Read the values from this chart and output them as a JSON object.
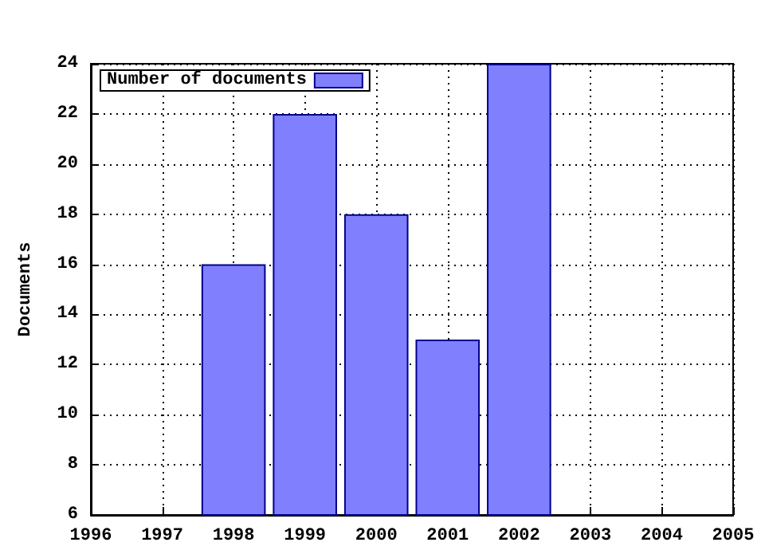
{
  "chart_data": {
    "type": "bar",
    "ylabel": "Documents",
    "x": [
      1998,
      1999,
      2000,
      2001,
      2002
    ],
    "series": [
      {
        "name": "Number of documents",
        "color": "#8080ff",
        "values": [
          16,
          22,
          18,
          13,
          24
        ]
      }
    ],
    "xlim": [
      1996,
      2005
    ],
    "xticks": [
      1996,
      1997,
      1998,
      1999,
      2000,
      2001,
      2002,
      2003,
      2004,
      2005
    ],
    "ylim": [
      6,
      24
    ],
    "yticks": [
      6,
      8,
      10,
      12,
      14,
      16,
      18,
      20,
      22,
      24
    ],
    "grid": true,
    "legend": "top left"
  }
}
